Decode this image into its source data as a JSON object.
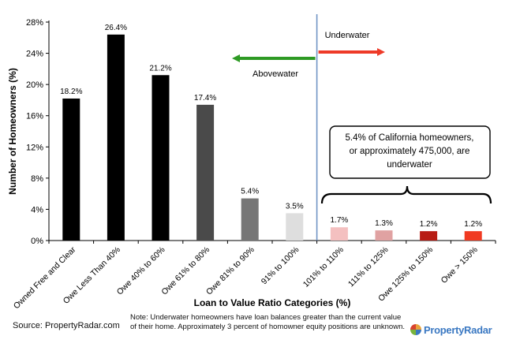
{
  "chart_data": {
    "type": "bar",
    "title": "",
    "xlabel": "Loan to Value Ratio Categories (%)",
    "ylabel": "Number of Homeowners (%)",
    "ylim": [
      0,
      28
    ],
    "yticks": [
      "0%",
      "4%",
      "8%",
      "12%",
      "16%",
      "20%",
      "24%",
      "28%"
    ],
    "ytick_values": [
      0,
      4,
      8,
      12,
      16,
      20,
      24,
      28
    ],
    "categories": [
      "Owned Free and Clear",
      "Owe Less Than 40%",
      "Owe 40% to 60%",
      "Owe 61% to 80%",
      "Owe 81% to 90%",
      "91% to 100%",
      "101% to 110%",
      "111% to 125%",
      "Owe 125% to 150%",
      "Owe > 150%"
    ],
    "values": [
      18.2,
      26.4,
      21.2,
      17.4,
      5.4,
      3.5,
      1.7,
      1.3,
      1.2,
      1.2
    ],
    "value_labels": [
      "18.2%",
      "26.4%",
      "21.2%",
      "17.4%",
      "5.4%",
      "3.5%",
      "1.7%",
      "1.3%",
      "1.2%",
      "1.2%"
    ],
    "bar_colors": [
      "#000000",
      "#000000",
      "#000000",
      "#4a4a4a",
      "#767676",
      "#dedede",
      "#f4c0c0",
      "#e0a2a2",
      "#b81c14",
      "#f03a22"
    ],
    "grid": false,
    "legend": "none",
    "annotations": {
      "underwater_label": "Underwater",
      "abovewater_label": "Abovewater",
      "callout": [
        "5.4% of California homeowners,",
        "or approximately 475,000, are",
        "underwater"
      ],
      "divider_color": "#6f93c4",
      "underwater_arrow_color": "#ee3a28",
      "abovewater_arrow_color": "#2e9a24"
    }
  },
  "footer": {
    "source": "Source: PropertyRadar.com",
    "note": "Note: Underwater homeowners have loan balances greater than the current value of their home. Approximately 3 percent of homowner equity positions are unknown.",
    "brand": "PropertyRadar"
  }
}
